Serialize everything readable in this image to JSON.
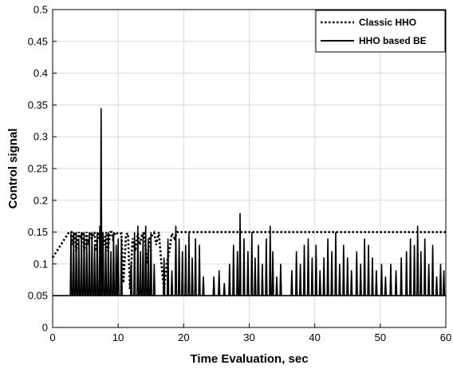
{
  "chart_data": {
    "type": "line",
    "title": "",
    "xlabel": "Time Evaluation, sec",
    "ylabel": "Control signal",
    "xlim": [
      0,
      60
    ],
    "ylim": [
      0,
      0.5
    ],
    "xticks": [
      0,
      10,
      20,
      30,
      40,
      50,
      60
    ],
    "yticks": [
      0,
      0.05,
      0.1,
      0.15,
      0.2,
      0.25,
      0.3,
      0.35,
      0.4,
      0.45,
      0.5
    ],
    "xtick_labels": [
      "0",
      "10",
      "20",
      "30",
      "40",
      "50",
      "60"
    ],
    "ytick_labels": [
      "0",
      "0.05",
      "0.1",
      "0.15",
      "0.2",
      "0.25",
      "0.3",
      "0.35",
      "0.4",
      "0.45",
      "0.5"
    ],
    "grid": true,
    "legend_position": "top-right",
    "series": [
      {
        "name": "Classic HHO",
        "style": "dotted",
        "color": "#000000",
        "x": [
          0,
          2.5,
          2.9,
          3.0,
          3.4,
          3.6,
          4.0,
          4.2,
          4.6,
          4.8,
          5.2,
          5.4,
          5.8,
          6.0,
          6.4,
          6.6,
          7.0,
          7.2,
          7.6,
          7.8,
          8.2,
          8.4,
          8.8,
          9.0,
          9.2,
          9.6,
          10.0,
          10.5,
          10.8,
          11.2,
          11.5,
          11.8,
          12.2,
          12.6,
          13.0,
          13.3,
          13.6,
          14.0,
          14.4,
          14.8,
          15.2,
          15.5,
          15.8,
          16.2,
          16.6,
          17.0,
          17.4,
          17.8,
          18.2,
          18.6,
          19.0,
          19.4,
          20.0,
          60.0
        ],
        "y": [
          0.11,
          0.15,
          0.15,
          0.13,
          0.15,
          0.12,
          0.15,
          0.14,
          0.15,
          0.12,
          0.15,
          0.13,
          0.15,
          0.14,
          0.15,
          0.12,
          0.15,
          0.14,
          0.15,
          0.13,
          0.15,
          0.12,
          0.15,
          0.15,
          0.14,
          0.15,
          0.147,
          0.148,
          0.07,
          0.146,
          0.148,
          0.06,
          0.14,
          0.12,
          0.148,
          0.13,
          0.145,
          0.148,
          0.1,
          0.14,
          0.145,
          0.149,
          0.13,
          0.15,
          0.1,
          0.06,
          0.1,
          0.12,
          0.148,
          0.14,
          0.15,
          0.15,
          0.15,
          0.15
        ]
      },
      {
        "name": "HHO based BE",
        "style": "solid",
        "color": "#000000",
        "baseline": 0.05,
        "x_start": 2.6,
        "x_end": 60,
        "spikes": [
          [
            2.8,
            0.15
          ],
          [
            3.2,
            0.15
          ],
          [
            3.6,
            0.15
          ],
          [
            4.0,
            0.14
          ],
          [
            4.4,
            0.15
          ],
          [
            4.8,
            0.15
          ],
          [
            5.2,
            0.14
          ],
          [
            5.6,
            0.15
          ],
          [
            6.0,
            0.15
          ],
          [
            6.4,
            0.13
          ],
          [
            6.8,
            0.15
          ],
          [
            7.2,
            0.16
          ],
          [
            7.4,
            0.345
          ],
          [
            7.7,
            0.15
          ],
          [
            8.1,
            0.14
          ],
          [
            8.5,
            0.15
          ],
          [
            8.9,
            0.12
          ],
          [
            9.3,
            0.15
          ],
          [
            9.7,
            0.13
          ],
          [
            10.0,
            0.14
          ],
          [
            10.5,
            0.14
          ],
          [
            12.0,
            0.1
          ],
          [
            12.5,
            0.15
          ],
          [
            13.0,
            0.16
          ],
          [
            13.4,
            0.12
          ],
          [
            13.8,
            0.15
          ],
          [
            14.2,
            0.16
          ],
          [
            14.6,
            0.14
          ],
          [
            15.0,
            0.15
          ],
          [
            15.5,
            0.1
          ],
          [
            17.0,
            0.11
          ],
          [
            17.6,
            0.14
          ],
          [
            18.2,
            0.09
          ],
          [
            18.8,
            0.16
          ],
          [
            19.3,
            0.14
          ],
          [
            19.8,
            0.12
          ],
          [
            20.3,
            0.13
          ],
          [
            20.8,
            0.15
          ],
          [
            21.3,
            0.11
          ],
          [
            21.8,
            0.14
          ],
          [
            22.4,
            0.13
          ],
          [
            23.0,
            0.08
          ],
          [
            24.6,
            0.08
          ],
          [
            25.4,
            0.09
          ],
          [
            26.2,
            0.07
          ],
          [
            27.0,
            0.1
          ],
          [
            27.6,
            0.13
          ],
          [
            28.2,
            0.12
          ],
          [
            28.6,
            0.18
          ],
          [
            29.2,
            0.14
          ],
          [
            29.8,
            0.12
          ],
          [
            30.4,
            0.15
          ],
          [
            30.9,
            0.11
          ],
          [
            31.4,
            0.13
          ],
          [
            32.0,
            0.1
          ],
          [
            32.6,
            0.14
          ],
          [
            33.2,
            0.16
          ],
          [
            33.6,
            0.12
          ],
          [
            34.2,
            0.08
          ],
          [
            34.8,
            0.1
          ],
          [
            36.5,
            0.09
          ],
          [
            37.2,
            0.12
          ],
          [
            37.8,
            0.1
          ],
          [
            38.4,
            0.13
          ],
          [
            39.0,
            0.14
          ],
          [
            39.6,
            0.11
          ],
          [
            40.2,
            0.13
          ],
          [
            40.8,
            0.09
          ],
          [
            41.4,
            0.11
          ],
          [
            42.0,
            0.14
          ],
          [
            42.6,
            0.12
          ],
          [
            43.2,
            0.15
          ],
          [
            43.8,
            0.1
          ],
          [
            44.4,
            0.13
          ],
          [
            45.0,
            0.11
          ],
          [
            45.6,
            0.09
          ],
          [
            46.4,
            0.12
          ],
          [
            47.0,
            0.1
          ],
          [
            47.6,
            0.14
          ],
          [
            48.2,
            0.13
          ],
          [
            48.8,
            0.11
          ],
          [
            49.4,
            0.09
          ],
          [
            50.2,
            0.1
          ],
          [
            50.8,
            0.08
          ],
          [
            51.6,
            0.1
          ],
          [
            52.4,
            0.09
          ],
          [
            53.2,
            0.11
          ],
          [
            54.0,
            0.12
          ],
          [
            54.6,
            0.14
          ],
          [
            55.2,
            0.13
          ],
          [
            55.7,
            0.16
          ],
          [
            56.2,
            0.12
          ],
          [
            56.8,
            0.14
          ],
          [
            57.4,
            0.1
          ],
          [
            58.0,
            0.13
          ],
          [
            58.6,
            0.08
          ],
          [
            59.2,
            0.1
          ],
          [
            59.7,
            0.09
          ]
        ]
      }
    ]
  }
}
